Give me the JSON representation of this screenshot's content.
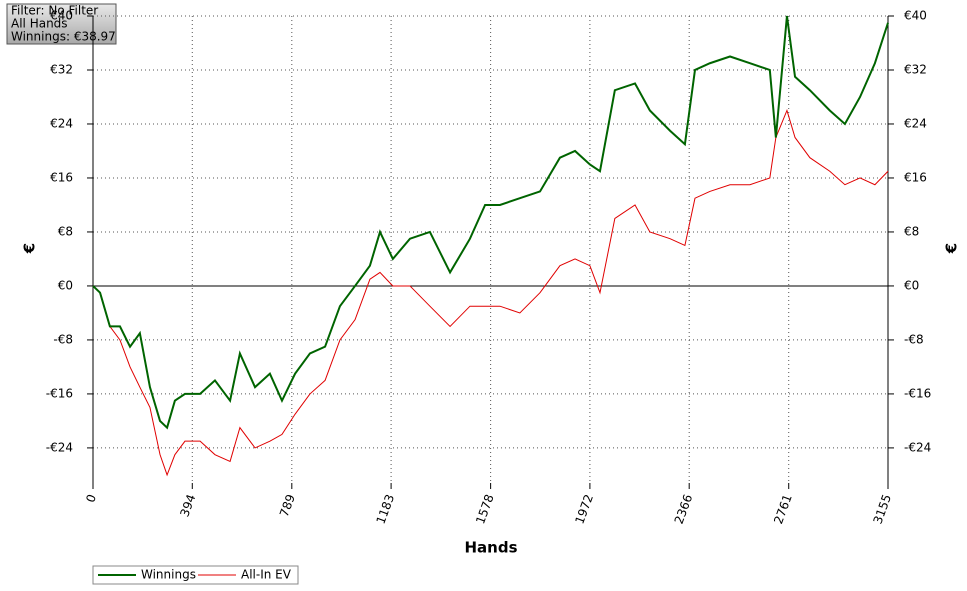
{
  "chart_data": {
    "type": "line",
    "info": [
      "Filter: No Filter",
      "All Hands",
      "Winnings: €38.97"
    ],
    "x_label": "Hands",
    "y_label": "€",
    "x": [
      0,
      28,
      67,
      107,
      147,
      186,
      226,
      266,
      294,
      325,
      365,
      425,
      484,
      544,
      583,
      643,
      702,
      750,
      802,
      861,
      921,
      980,
      1040,
      1099,
      1139,
      1190,
      1258,
      1337,
      1417,
      1496,
      1556,
      1615,
      1694,
      1774,
      1853,
      1913,
      1972,
      2012,
      2071,
      2151,
      2210,
      2290,
      2349,
      2389,
      2448,
      2528,
      2607,
      2686,
      2710,
      2754,
      2786,
      2845,
      2924,
      2984,
      3044,
      3103,
      3155
    ],
    "series": [
      {
        "name": "Winnings",
        "color": "#006400",
        "values": [
          0,
          -1,
          -6,
          -6,
          -9,
          -7,
          -15,
          -20,
          -21,
          -17,
          -16,
          -16,
          -14,
          -17,
          -10,
          -15,
          -13,
          -17,
          -13,
          -10,
          -9,
          -3,
          0,
          3,
          8,
          4,
          7,
          8,
          2,
          7,
          12,
          12,
          13,
          14,
          19,
          20,
          18,
          17,
          29,
          30,
          26,
          23,
          21,
          32,
          33,
          34,
          33,
          32,
          22,
          40,
          31,
          29,
          26,
          24,
          28,
          33,
          39
        ]
      },
      {
        "name": "All-In EV",
        "color": "#e00000",
        "values": [
          0,
          -1,
          -6,
          -8,
          -12,
          -15,
          -18,
          -25,
          -28,
          -25,
          -23,
          -23,
          -25,
          -26,
          -21,
          -24,
          -23,
          -22,
          -19,
          -16,
          -14,
          -8,
          -5,
          1,
          2,
          0,
          0,
          -3,
          -6,
          -3,
          -3,
          -3,
          -4,
          -1,
          3,
          4,
          3,
          -1,
          10,
          12,
          8,
          7,
          6,
          13,
          14,
          15,
          15,
          16,
          22,
          26,
          22,
          19,
          17,
          15,
          16,
          15,
          17
        ]
      }
    ],
    "xlim": [
      0,
      3155
    ],
    "xticks": [
      0,
      394,
      789,
      1183,
      1578,
      1972,
      2366,
      2761,
      3155
    ],
    "ylim": [
      -29.2,
      40
    ],
    "yticks": [
      {
        "value": -24,
        "label": "-€24"
      },
      {
        "value": -16,
        "label": "-€16"
      },
      {
        "value": -8,
        "label": "-€8"
      },
      {
        "value": 0,
        "label": "€0"
      },
      {
        "value": 8,
        "label": "€8"
      },
      {
        "value": 16,
        "label": "€16"
      },
      {
        "value": 24,
        "label": "€24"
      },
      {
        "value": 32,
        "label": "€32"
      },
      {
        "value": 40,
        "label": "€40"
      }
    ],
    "grid": true
  }
}
